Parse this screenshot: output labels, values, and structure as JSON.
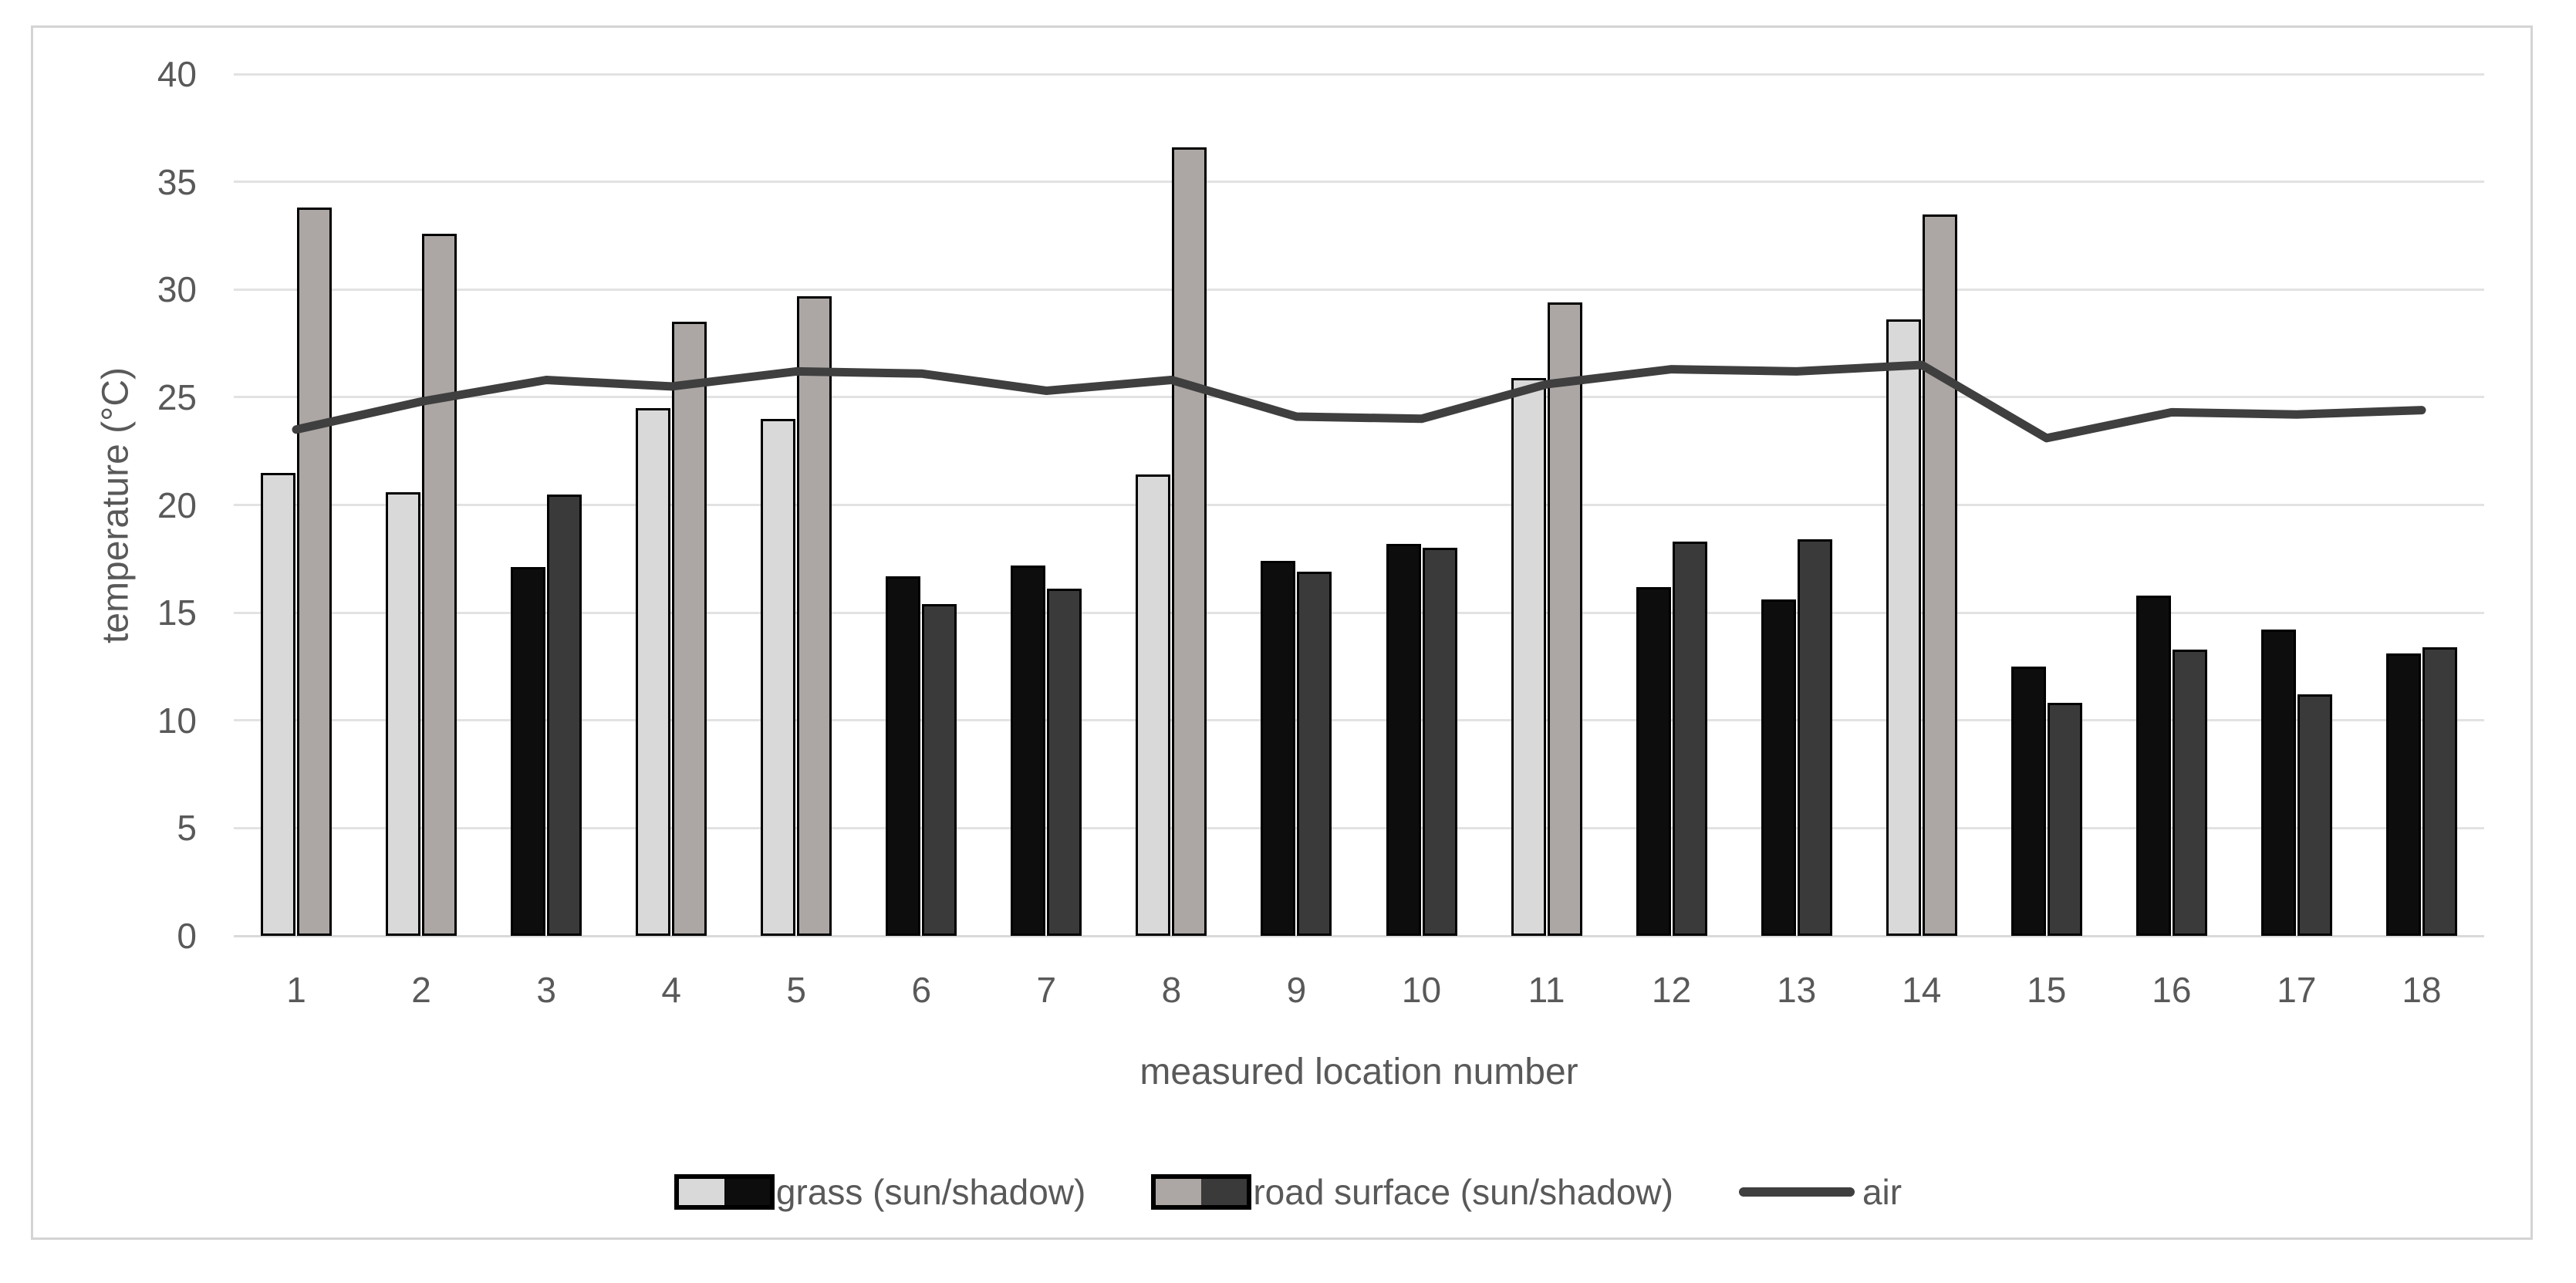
{
  "chart_data": {
    "type": "bar",
    "title": "",
    "xlabel": "measured location number",
    "ylabel": "temperature (°C)",
    "ylim": [
      0,
      40
    ],
    "ytick_step": 5,
    "yticks": [
      0,
      5,
      10,
      15,
      20,
      25,
      30,
      35,
      40
    ],
    "grid": "horizontal",
    "legend_position": "bottom",
    "categories": [
      "1",
      "2",
      "3",
      "4",
      "5",
      "6",
      "7",
      "8",
      "9",
      "10",
      "11",
      "12",
      "13",
      "14",
      "15",
      "16",
      "17",
      "18"
    ],
    "sun_flags": [
      1,
      1,
      0,
      1,
      1,
      0,
      0,
      1,
      0,
      0,
      1,
      0,
      0,
      1,
      0,
      0,
      0,
      0
    ],
    "series": [
      {
        "name": "grass (sun/shadow)",
        "type": "bar",
        "values": [
          21.5,
          20.6,
          17.1,
          24.5,
          24.0,
          16.7,
          17.2,
          21.4,
          17.4,
          18.2,
          25.9,
          16.2,
          15.6,
          28.6,
          12.5,
          15.8,
          14.2,
          13.1
        ]
      },
      {
        "name": "road surface (sun/shadow)",
        "type": "bar",
        "values": [
          33.8,
          32.6,
          20.5,
          28.5,
          29.7,
          15.4,
          16.1,
          36.6,
          16.9,
          18.0,
          29.4,
          18.3,
          18.4,
          33.5,
          10.8,
          13.3,
          11.2,
          13.4
        ]
      },
      {
        "name": "air",
        "type": "line",
        "values": [
          23.5,
          24.8,
          25.8,
          25.5,
          26.2,
          26.1,
          25.3,
          25.8,
          24.1,
          24.0,
          25.6,
          26.3,
          26.2,
          26.5,
          23.1,
          24.3,
          24.2,
          24.4
        ]
      }
    ]
  },
  "colors": {
    "grass_sun": "#d9d9d9",
    "grass_shadow": "#0d0d0d",
    "road_sun": "#aca7a5",
    "road_shadow": "#3a3a3a",
    "air_line": "#3f3f3f",
    "bar_outline": "#000000",
    "gridline": "#e2e2e2",
    "axis_line": "#d9d9d9",
    "text": "#595959",
    "chart_border": "#d4d4d4"
  },
  "layout_labels": {
    "legend_grass": "grass (sun/shadow)",
    "legend_road": "road surface (sun/shadow)",
    "legend_air": "air"
  }
}
